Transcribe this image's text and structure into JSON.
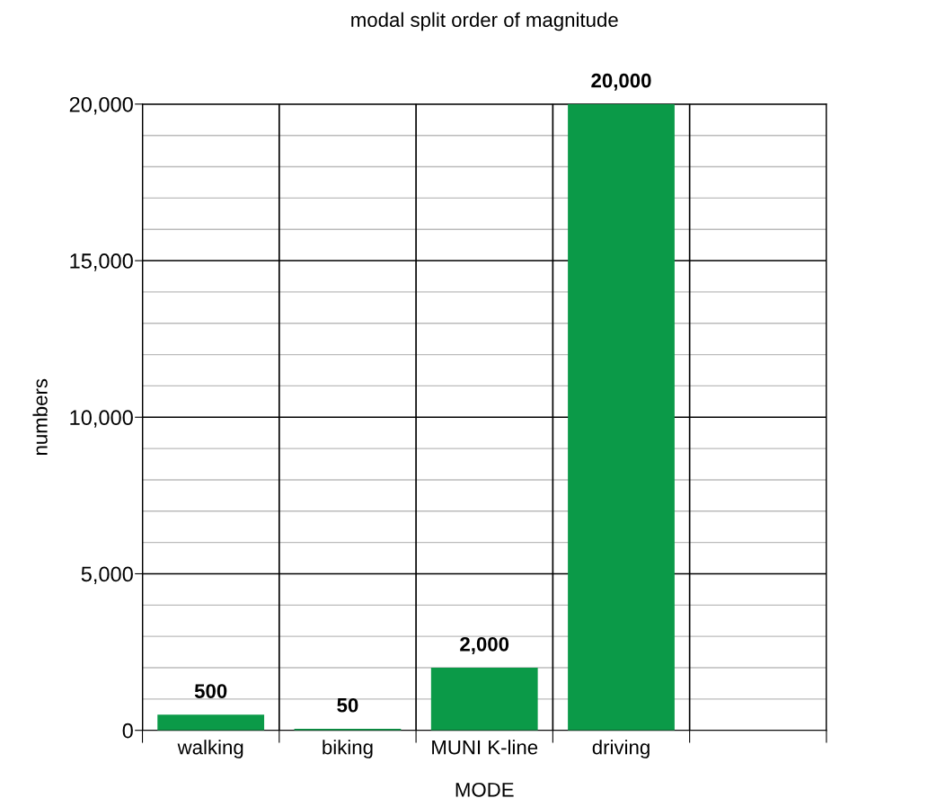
{
  "chart_data": {
    "type": "bar",
    "title": "modal split order of magnitude",
    "xlabel": "MODE",
    "ylabel": "numbers",
    "categories": [
      "walking",
      "biking",
      "MUNI K-line",
      "driving",
      null
    ],
    "values": [
      500,
      50,
      2000,
      20000,
      null
    ],
    "color": "#0b9a48",
    "value_labels": [
      "500",
      "50",
      "2,000",
      "20,000",
      null
    ],
    "ylim": [
      0,
      20000
    ],
    "yticks": [
      {
        "value": 0,
        "label": "0"
      },
      {
        "value": 1000,
        "label": null
      },
      {
        "value": 2000,
        "label": null
      },
      {
        "value": 3000,
        "label": null
      },
      {
        "value": 4000,
        "label": null
      },
      {
        "value": 5000,
        "label": "5,000"
      },
      {
        "value": 6000,
        "label": null
      },
      {
        "value": 7000,
        "label": null
      },
      {
        "value": 8000,
        "label": null
      },
      {
        "value": 9000,
        "label": null
      },
      {
        "value": 10000,
        "label": "10,000"
      },
      {
        "value": 11000,
        "label": null
      },
      {
        "value": 12000,
        "label": null
      },
      {
        "value": 13000,
        "label": null
      },
      {
        "value": 14000,
        "label": null
      },
      {
        "value": 15000,
        "label": "15,000"
      },
      {
        "value": 16000,
        "label": null
      },
      {
        "value": 17000,
        "label": null
      },
      {
        "value": 18000,
        "label": null
      },
      {
        "value": 19000,
        "label": null
      },
      {
        "value": 20000,
        "label": "20,000"
      }
    ],
    "grid": true
  }
}
